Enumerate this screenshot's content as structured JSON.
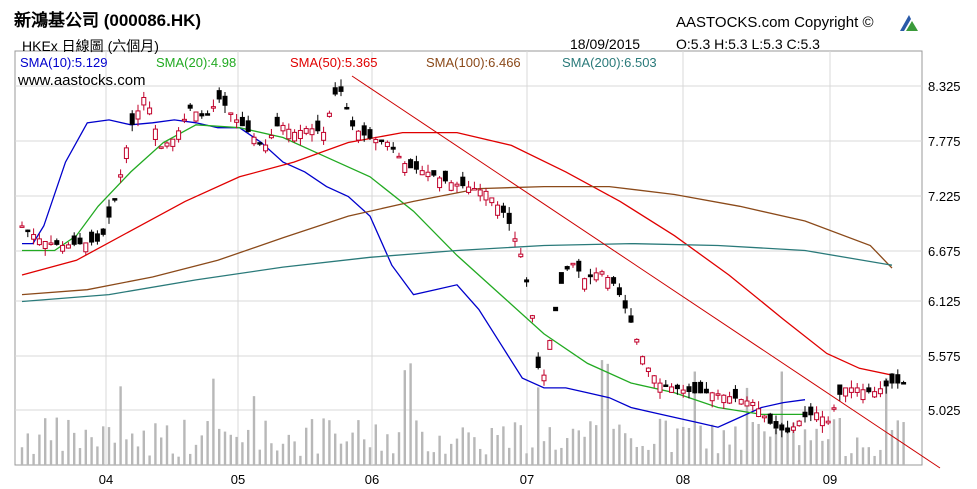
{
  "header": {
    "title": "新鴻基公司 (000086.HK)",
    "subtitle": "HKEx 日線圖 (六個月)",
    "brand": "AASTOCKS.com Copyright ©",
    "date": "18/09/2015",
    "ohlc": "O:5.3  H:5.3  L:5.3  C:5.3",
    "watermark": "www.aastocks.com"
  },
  "legend": [
    {
      "label": "SMA(10):5.129",
      "color": "#0000cc"
    },
    {
      "label": "SMA(20):4.98",
      "color": "#22aa22"
    },
    {
      "label": "SMA(50):5.365",
      "color": "#e00000"
    },
    {
      "label": "SMA(100):6.466",
      "color": "#8b4a1a"
    },
    {
      "label": "SMA(200):6.503",
      "color": "#2a7a7a"
    }
  ],
  "chart_data": {
    "type": "candlestick",
    "y_ticks": [
      "8.325",
      "7.775",
      "7.225",
      "6.675",
      "6.125",
      "5.575",
      "5.025"
    ],
    "x_ticks": [
      "04",
      "05",
      "06",
      "07",
      "08",
      "09"
    ],
    "ylim": [
      4.6,
      8.5
    ],
    "grid": true,
    "trendline_color": "#cc0000",
    "sma_series": [
      {
        "name": "SMA(10)",
        "color": "#0000cc",
        "points": [
          [
            0,
            6.72
          ],
          [
            10,
            6.72
          ],
          [
            20,
            6.9
          ],
          [
            40,
            7.55
          ],
          [
            60,
            7.95
          ],
          [
            80,
            7.98
          ],
          [
            100,
            7.93
          ],
          [
            120,
            7.95
          ],
          [
            140,
            7.98
          ],
          [
            160,
            7.95
          ],
          [
            180,
            7.9
          ],
          [
            200,
            7.9
          ],
          [
            220,
            7.75
          ],
          [
            240,
            7.55
          ],
          [
            260,
            7.45
          ],
          [
            280,
            7.3
          ],
          [
            300,
            7.2
          ],
          [
            320,
            7.0
          ],
          [
            340,
            6.5
          ],
          [
            360,
            6.2
          ],
          [
            380,
            6.25
          ],
          [
            400,
            6.3
          ],
          [
            420,
            6.05
          ],
          [
            440,
            5.7
          ],
          [
            460,
            5.35
          ],
          [
            480,
            5.25
          ],
          [
            500,
            5.25
          ],
          [
            520,
            5.2
          ],
          [
            540,
            5.15
          ],
          [
            560,
            5.05
          ],
          [
            580,
            5.0
          ],
          [
            600,
            4.95
          ],
          [
            620,
            4.9
          ],
          [
            640,
            4.85
          ],
          [
            660,
            4.95
          ],
          [
            680,
            5.05
          ],
          [
            700,
            5.1
          ],
          [
            720,
            5.13
          ]
        ]
      },
      {
        "name": "SMA(20)",
        "color": "#22aa22",
        "points": [
          [
            0,
            6.65
          ],
          [
            30,
            6.65
          ],
          [
            50,
            6.8
          ],
          [
            70,
            7.1
          ],
          [
            100,
            7.45
          ],
          [
            130,
            7.75
          ],
          [
            160,
            7.93
          ],
          [
            200,
            7.9
          ],
          [
            240,
            7.8
          ],
          [
            280,
            7.6
          ],
          [
            320,
            7.4
          ],
          [
            360,
            7.05
          ],
          [
            400,
            6.6
          ],
          [
            440,
            6.2
          ],
          [
            480,
            5.8
          ],
          [
            520,
            5.5
          ],
          [
            560,
            5.3
          ],
          [
            600,
            5.2
          ],
          [
            640,
            5.05
          ],
          [
            680,
            4.98
          ],
          [
            700,
            4.98
          ],
          [
            720,
            4.98
          ]
        ]
      },
      {
        "name": "SMA(50)",
        "color": "#e00000",
        "points": [
          [
            0,
            6.4
          ],
          [
            50,
            6.55
          ],
          [
            100,
            6.85
          ],
          [
            150,
            7.15
          ],
          [
            200,
            7.4
          ],
          [
            250,
            7.55
          ],
          [
            300,
            7.75
          ],
          [
            350,
            7.85
          ],
          [
            400,
            7.85
          ],
          [
            450,
            7.72
          ],
          [
            500,
            7.45
          ],
          [
            550,
            7.15
          ],
          [
            600,
            6.8
          ],
          [
            650,
            6.4
          ],
          [
            700,
            5.95
          ],
          [
            740,
            5.6
          ],
          [
            770,
            5.45
          ],
          [
            800,
            5.38
          ]
        ]
      },
      {
        "name": "SMA(100)",
        "color": "#8b4a1a",
        "points": [
          [
            0,
            6.2
          ],
          [
            60,
            6.25
          ],
          [
            120,
            6.38
          ],
          [
            180,
            6.55
          ],
          [
            240,
            6.78
          ],
          [
            300,
            7.0
          ],
          [
            360,
            7.15
          ],
          [
            420,
            7.28
          ],
          [
            480,
            7.3
          ],
          [
            540,
            7.3
          ],
          [
            600,
            7.22
          ],
          [
            660,
            7.1
          ],
          [
            720,
            6.95
          ],
          [
            780,
            6.7
          ],
          [
            800,
            6.47
          ]
        ]
      },
      {
        "name": "SMA(200)",
        "color": "#2a7a7a",
        "points": [
          [
            0,
            6.13
          ],
          [
            80,
            6.2
          ],
          [
            160,
            6.35
          ],
          [
            240,
            6.48
          ],
          [
            320,
            6.58
          ],
          [
            400,
            6.65
          ],
          [
            480,
            6.7
          ],
          [
            560,
            6.72
          ],
          [
            640,
            6.7
          ],
          [
            720,
            6.65
          ],
          [
            800,
            6.5
          ]
        ]
      }
    ]
  }
}
